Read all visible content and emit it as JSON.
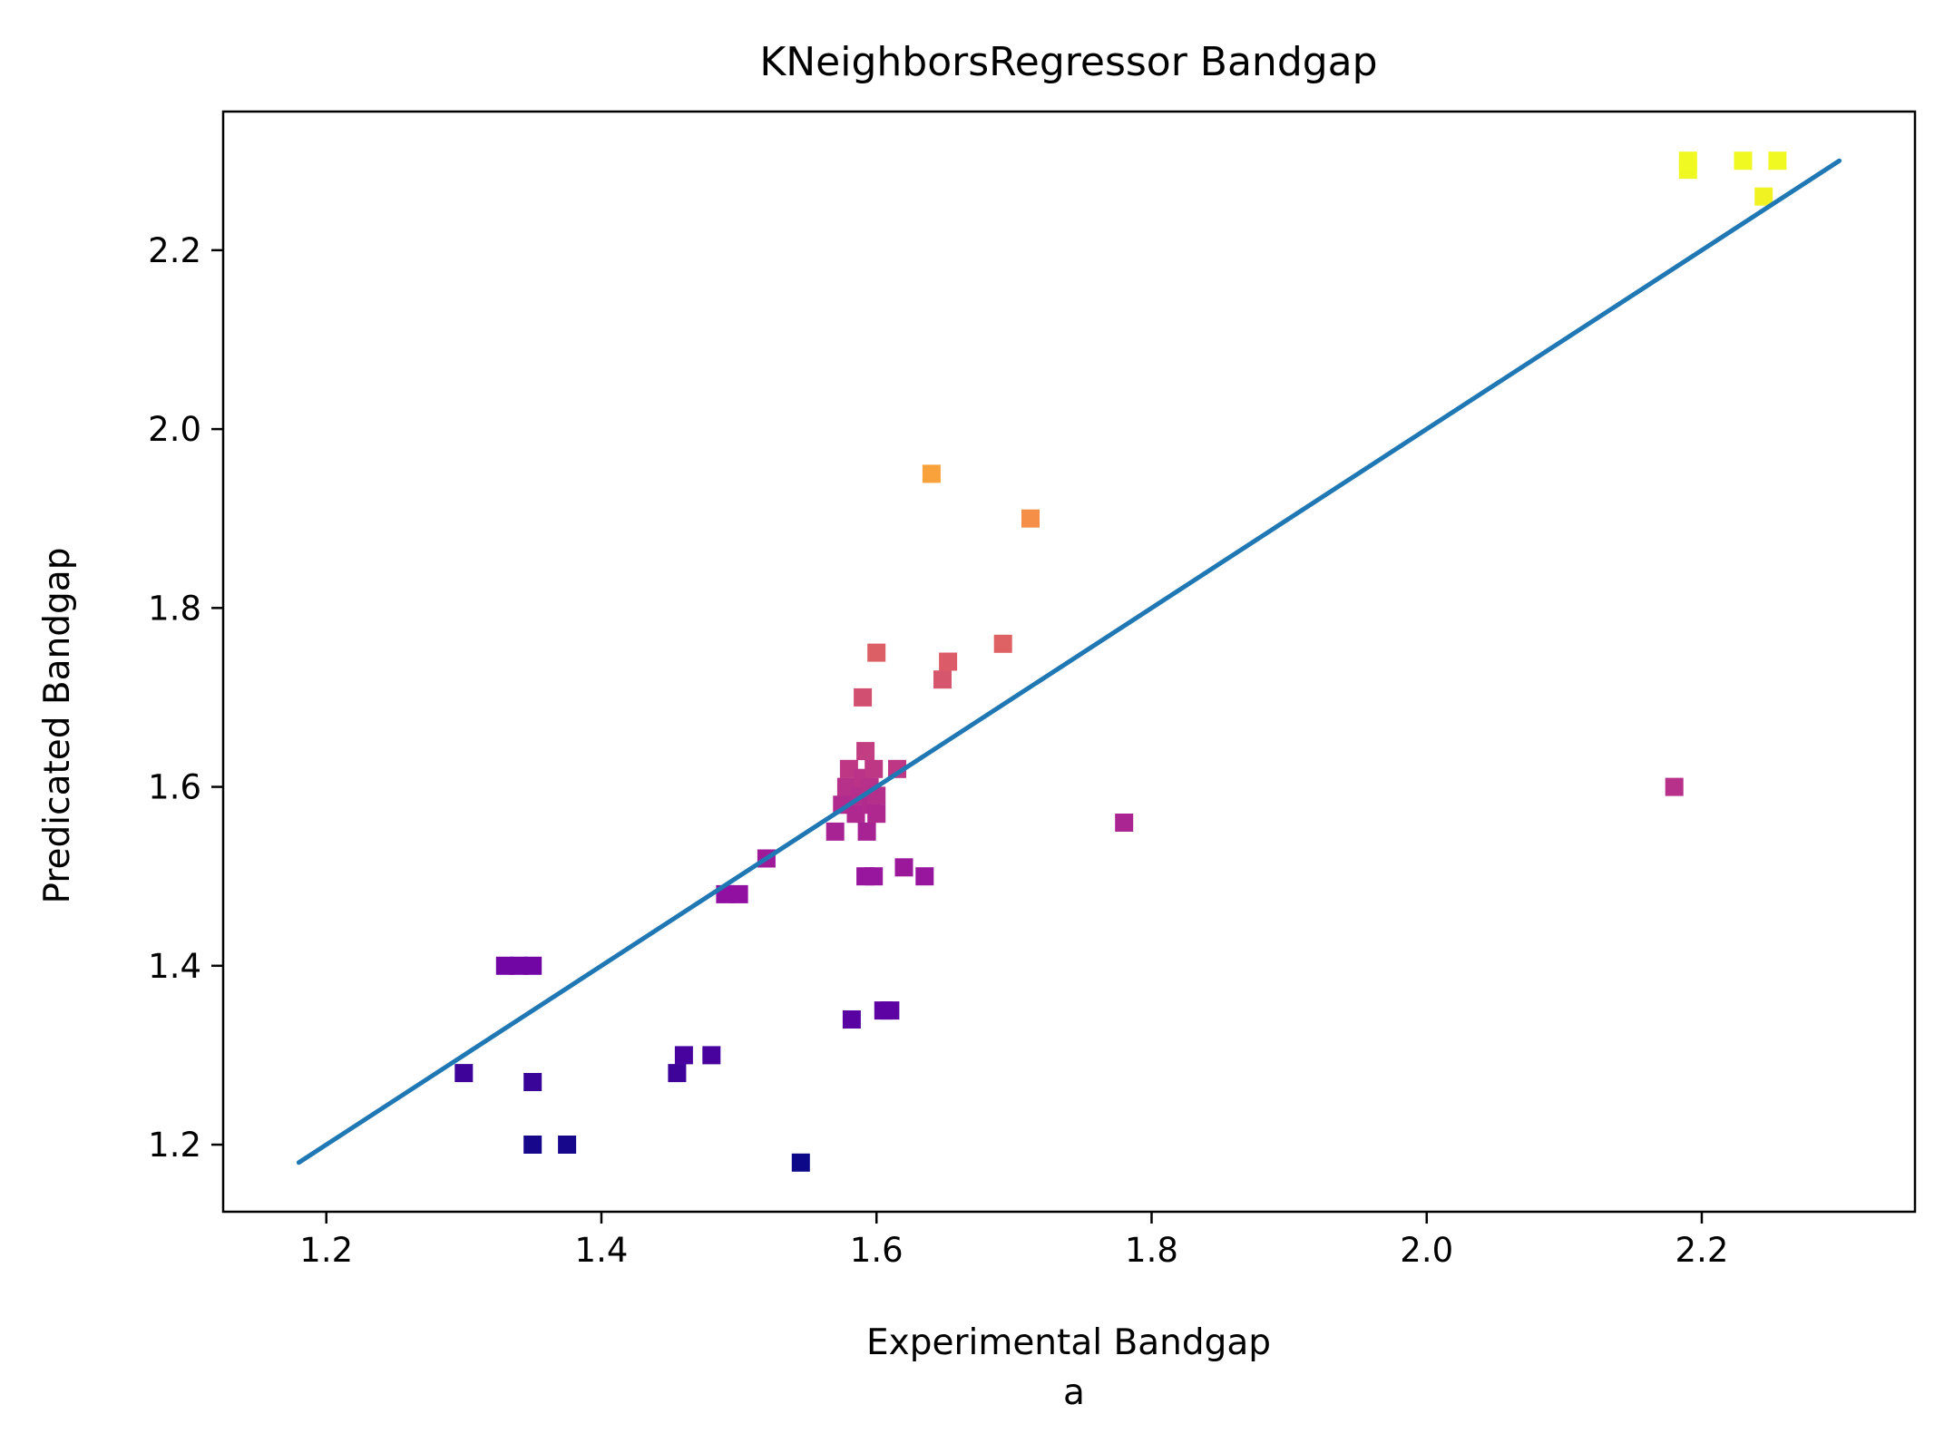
{
  "chart_data": {
    "type": "scatter",
    "title": "KNeighborsRegressor Bandgap",
    "xlabel": "Experimental Bandgap",
    "sublabel": "a",
    "ylabel": "Predicated Bandgap",
    "xlim": [
      1.125,
      2.355
    ],
    "ylim": [
      1.125,
      2.355
    ],
    "xticks": [
      1.2,
      1.4,
      1.6,
      1.8,
      2.0,
      2.2
    ],
    "yticks": [
      1.2,
      1.4,
      1.6,
      1.8,
      2.0,
      2.2
    ],
    "xtick_labels": [
      "1.2",
      "1.4",
      "1.6",
      "1.8",
      "2.0",
      "2.2"
    ],
    "ytick_labels": [
      "1.2",
      "1.4",
      "1.6",
      "1.8",
      "2.0",
      "2.2"
    ],
    "grid": false,
    "colormap": "plasma",
    "color_range": [
      1.18,
      2.3
    ],
    "reference_line": {
      "x": [
        1.18,
        2.3
      ],
      "y": [
        1.18,
        2.3
      ],
      "color": "#1f77b4"
    },
    "points": [
      {
        "x": 1.3,
        "y": 1.28
      },
      {
        "x": 1.33,
        "y": 1.4
      },
      {
        "x": 1.34,
        "y": 1.4
      },
      {
        "x": 1.35,
        "y": 1.4
      },
      {
        "x": 1.35,
        "y": 1.27
      },
      {
        "x": 1.35,
        "y": 1.2
      },
      {
        "x": 1.375,
        "y": 1.2
      },
      {
        "x": 1.455,
        "y": 1.28
      },
      {
        "x": 1.46,
        "y": 1.3
      },
      {
        "x": 1.48,
        "y": 1.3
      },
      {
        "x": 1.49,
        "y": 1.48
      },
      {
        "x": 1.5,
        "y": 1.48
      },
      {
        "x": 1.52,
        "y": 1.52
      },
      {
        "x": 1.545,
        "y": 1.18
      },
      {
        "x": 1.57,
        "y": 1.55
      },
      {
        "x": 1.575,
        "y": 1.58
      },
      {
        "x": 1.578,
        "y": 1.6
      },
      {
        "x": 1.58,
        "y": 1.62
      },
      {
        "x": 1.582,
        "y": 1.34
      },
      {
        "x": 1.585,
        "y": 1.57
      },
      {
        "x": 1.588,
        "y": 1.59
      },
      {
        "x": 1.59,
        "y": 1.61
      },
      {
        "x": 1.59,
        "y": 1.7
      },
      {
        "x": 1.592,
        "y": 1.64
      },
      {
        "x": 1.593,
        "y": 1.55
      },
      {
        "x": 1.595,
        "y": 1.6
      },
      {
        "x": 1.596,
        "y": 1.58
      },
      {
        "x": 1.598,
        "y": 1.62
      },
      {
        "x": 1.592,
        "y": 1.5
      },
      {
        "x": 1.598,
        "y": 1.5
      },
      {
        "x": 1.6,
        "y": 1.75
      },
      {
        "x": 1.6,
        "y": 1.59
      },
      {
        "x": 1.6,
        "y": 1.57
      },
      {
        "x": 1.605,
        "y": 1.35
      },
      {
        "x": 1.61,
        "y": 1.35
      },
      {
        "x": 1.615,
        "y": 1.62
      },
      {
        "x": 1.62,
        "y": 1.51
      },
      {
        "x": 1.635,
        "y": 1.5
      },
      {
        "x": 1.64,
        "y": 1.95
      },
      {
        "x": 1.648,
        "y": 1.72
      },
      {
        "x": 1.652,
        "y": 1.74
      },
      {
        "x": 1.692,
        "y": 1.76
      },
      {
        "x": 1.712,
        "y": 1.9
      },
      {
        "x": 1.78,
        "y": 1.56
      },
      {
        "x": 2.18,
        "y": 1.6
      },
      {
        "x": 2.19,
        "y": 2.29
      },
      {
        "x": 2.19,
        "y": 2.3
      },
      {
        "x": 2.23,
        "y": 2.3
      },
      {
        "x": 2.245,
        "y": 2.26
      },
      {
        "x": 2.255,
        "y": 2.3
      }
    ]
  }
}
